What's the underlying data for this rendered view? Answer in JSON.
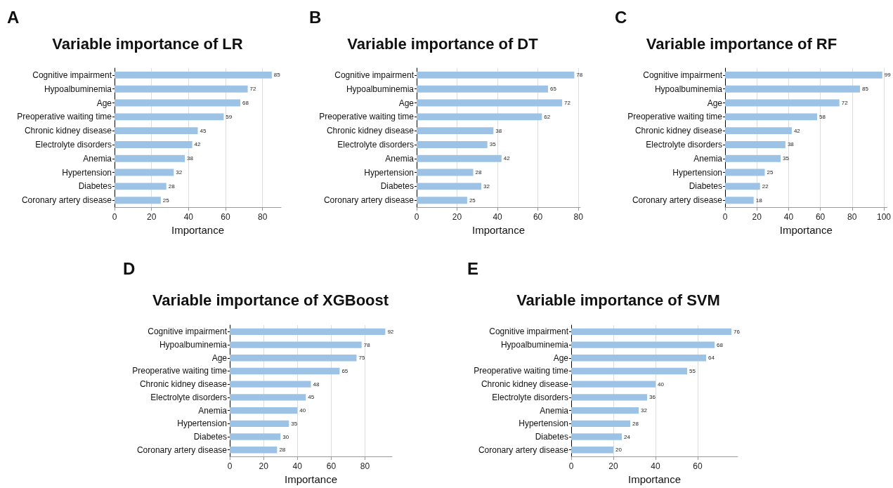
{
  "chart_data": [
    {
      "type": "bar",
      "orientation": "horizontal",
      "title": "Variable importance of LR",
      "xlabel": "Importance",
      "annotations": [
        "A"
      ],
      "categories": [
        "Cognitive impairment",
        "Hypoalbuminemia",
        "Age",
        "Preoperative waiting time",
        "Chronic kidney disease",
        "Electrolyte disorders",
        "Anemia",
        "Hypertension",
        "Diabetes",
        "Coronary artery disease"
      ],
      "values": [
        85,
        72,
        68,
        59,
        45,
        42,
        38,
        32,
        28,
        25
      ],
      "color": "#9cc3e6",
      "xlim": [
        0,
        90
      ],
      "xticks": [
        0,
        20,
        40,
        60,
        80
      ],
      "grid": "x",
      "data_labels": true
    },
    {
      "type": "bar",
      "orientation": "horizontal",
      "title": "Variable importance of DT",
      "xlabel": "Importance",
      "annotations": [
        "B"
      ],
      "categories": [
        "Cognitive impairment",
        "Hypoalbuminemia",
        "Age",
        "Preoperative waiting time",
        "Chronic kidney disease",
        "Electrolyte disorders",
        "Anemia",
        "Hypertension",
        "Diabetes",
        "Coronary artery disease"
      ],
      "values": [
        78,
        65,
        72,
        62,
        38,
        35,
        42,
        28,
        32,
        25
      ],
      "color": "#9cc3e6",
      "xlim": [
        0,
        81
      ],
      "xticks": [
        0,
        20,
        40,
        60,
        80
      ],
      "grid": "x",
      "data_labels": true
    },
    {
      "type": "bar",
      "orientation": "horizontal",
      "title": "Variable importance of RF",
      "xlabel": "Importance",
      "annotations": [
        "C"
      ],
      "categories": [
        "Cognitive impairment",
        "Hypoalbuminemia",
        "Age",
        "Preoperative waiting time",
        "Chronic kidney disease",
        "Electrolyte disorders",
        "Anemia",
        "Hypertension",
        "Diabetes",
        "Coronary artery disease"
      ],
      "values": [
        99,
        85,
        72,
        58,
        42,
        38,
        35,
        25,
        22,
        18
      ],
      "color": "#9cc3e6",
      "xlim": [
        0,
        102
      ],
      "xticks": [
        0,
        20,
        40,
        60,
        80,
        100
      ],
      "grid": "x",
      "data_labels": true
    },
    {
      "type": "bar",
      "orientation": "horizontal",
      "title": "Variable importance of XGBoost",
      "xlabel": "Importance",
      "annotations": [
        "D"
      ],
      "categories": [
        "Cognitive impairment",
        "Hypoalbuminemia",
        "Age",
        "Preoperative waiting time",
        "Chronic kidney disease",
        "Electrolyte disorders",
        "Anemia",
        "Hypertension",
        "Diabetes",
        "Coronary artery disease"
      ],
      "values": [
        92,
        78,
        75,
        65,
        48,
        45,
        40,
        35,
        30,
        28
      ],
      "color": "#9cc3e6",
      "xlim": [
        0,
        96
      ],
      "xticks": [
        0,
        20,
        40,
        60,
        80
      ],
      "grid": "x",
      "data_labels": true
    },
    {
      "type": "bar",
      "orientation": "horizontal",
      "title": "Variable importance of SVM",
      "xlabel": "Importance",
      "annotations": [
        "E"
      ],
      "categories": [
        "Cognitive impairment",
        "Hypoalbuminemia",
        "Age",
        "Preoperative waiting time",
        "Chronic kidney disease",
        "Electrolyte disorders",
        "Anemia",
        "Hypertension",
        "Diabetes",
        "Coronary artery disease"
      ],
      "values": [
        76,
        68,
        64,
        55,
        40,
        36,
        32,
        28,
        24,
        20
      ],
      "color": "#9cc3e6",
      "xlim": [
        0,
        79
      ],
      "xticks": [
        0,
        20,
        40,
        60
      ],
      "grid": "x",
      "data_labels": true
    }
  ]
}
